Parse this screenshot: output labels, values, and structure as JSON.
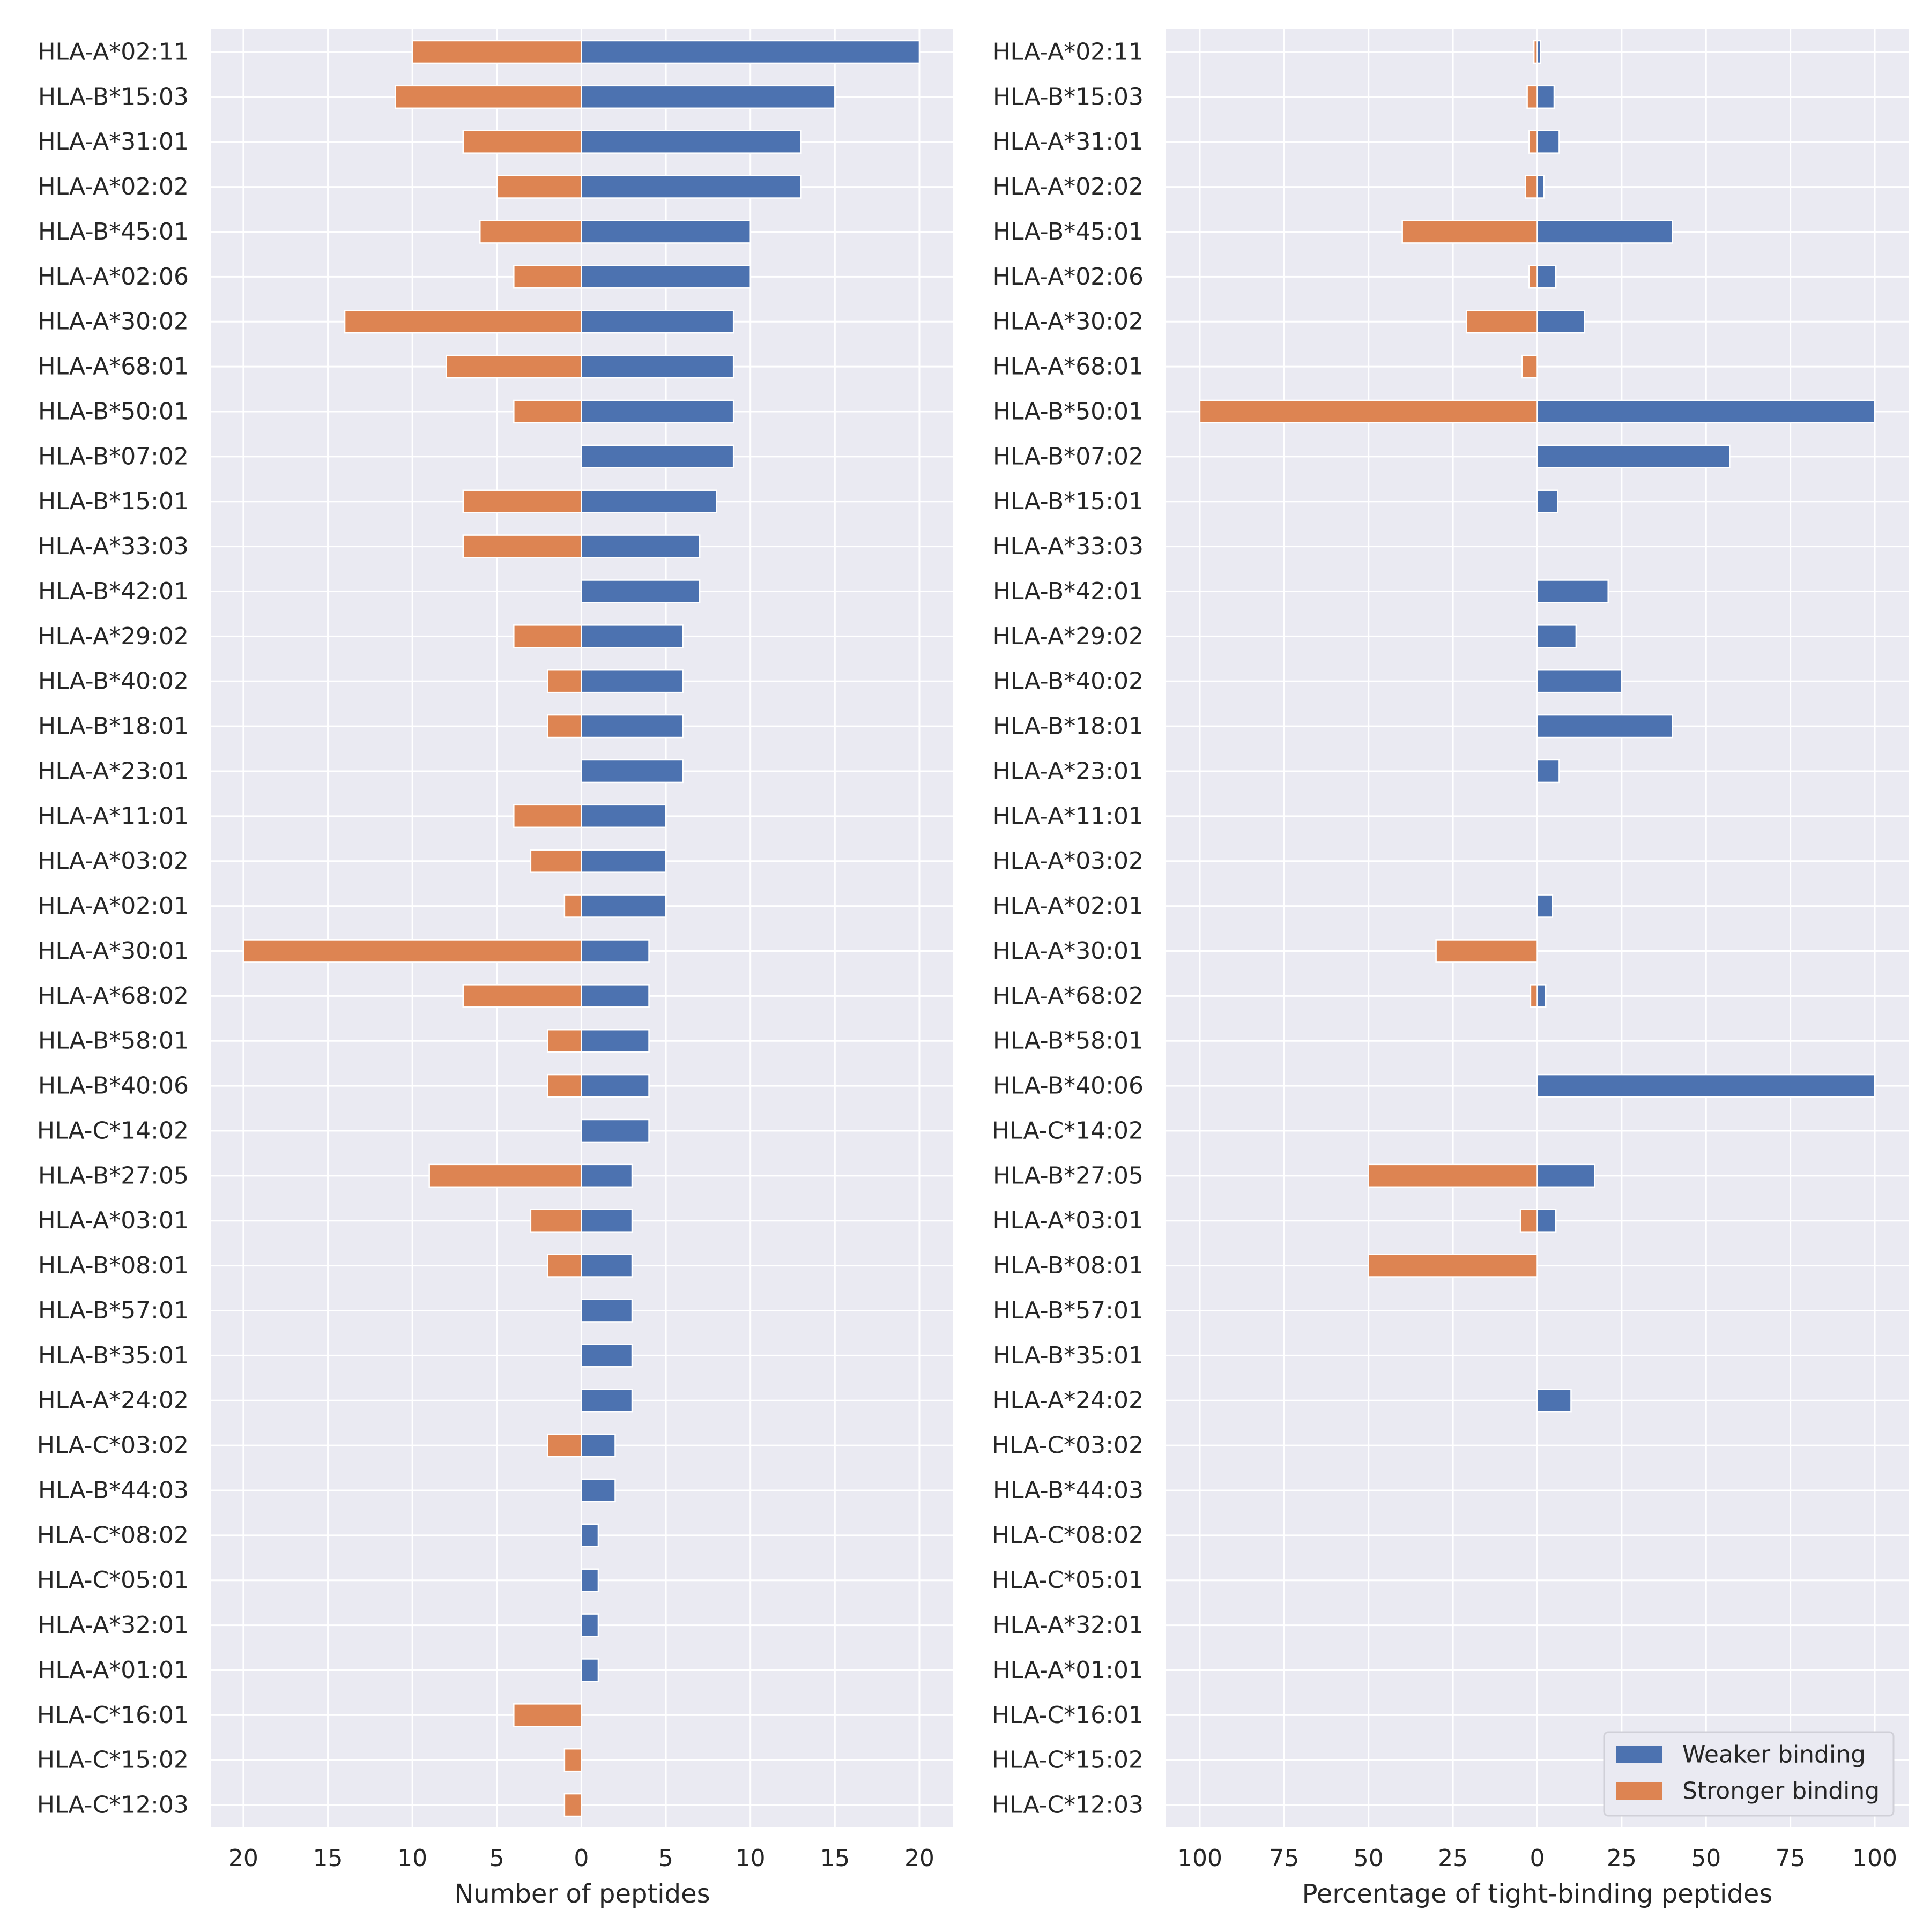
{
  "chart_data": [
    {
      "type": "bar",
      "orientation": "horizontal-diverging",
      "xlabel": "Number of peptides",
      "xlim": [
        -21.9,
        22
      ],
      "xticks": [
        -20,
        -15,
        -10,
        -5,
        0,
        5,
        10,
        15,
        20
      ],
      "xtick_labels": [
        "20",
        "15",
        "10",
        "5",
        "0",
        "5",
        "10",
        "15",
        "20"
      ],
      "grid": true,
      "categories": [
        "HLA-A*02:11",
        "HLA-B*15:03",
        "HLA-A*31:01",
        "HLA-A*02:02",
        "HLA-B*45:01",
        "HLA-A*02:06",
        "HLA-A*30:02",
        "HLA-A*68:01",
        "HLA-B*50:01",
        "HLA-B*07:02",
        "HLA-B*15:01",
        "HLA-A*33:03",
        "HLA-B*42:01",
        "HLA-A*29:02",
        "HLA-B*40:02",
        "HLA-B*18:01",
        "HLA-A*23:01",
        "HLA-A*11:01",
        "HLA-A*03:02",
        "HLA-A*02:01",
        "HLA-A*30:01",
        "HLA-A*68:02",
        "HLA-B*58:01",
        "HLA-B*40:06",
        "HLA-C*14:02",
        "HLA-B*27:05",
        "HLA-A*03:01",
        "HLA-B*08:01",
        "HLA-B*57:01",
        "HLA-B*35:01",
        "HLA-A*24:02",
        "HLA-C*03:02",
        "HLA-B*44:03",
        "HLA-C*08:02",
        "HLA-C*05:01",
        "HLA-A*32:01",
        "HLA-A*01:01",
        "HLA-C*16:01",
        "HLA-C*15:02",
        "HLA-C*12:03"
      ],
      "series": [
        {
          "name": "Weaker binding",
          "color": "#4c72b0",
          "values": [
            20,
            15,
            13,
            13,
            10,
            10,
            9,
            9,
            9,
            9,
            8,
            7,
            7,
            6,
            6,
            6,
            6,
            5,
            5,
            5,
            4,
            4,
            4,
            4,
            4,
            3,
            3,
            3,
            3,
            3,
            3,
            2,
            2,
            1,
            1,
            1,
            1,
            0,
            0,
            0
          ]
        },
        {
          "name": "Stronger binding",
          "color": "#dd8452",
          "values": [
            -10,
            -11,
            -7,
            -5,
            -6,
            -4,
            -14,
            -8,
            -4,
            0,
            -7,
            -7,
            0,
            -4,
            -2,
            -2,
            0,
            -4,
            -3,
            -1,
            -20,
            -7,
            -2,
            -2,
            0,
            -9,
            -3,
            -2,
            0,
            0,
            0,
            -2,
            0,
            0,
            0,
            0,
            0,
            -4,
            -1,
            -1
          ]
        }
      ]
    },
    {
      "type": "bar",
      "orientation": "horizontal-diverging",
      "xlabel": "Percentage of tight-binding peptides",
      "xlim": [
        -110,
        110
      ],
      "xticks": [
        -100,
        -75,
        -50,
        -25,
        0,
        25,
        50,
        75,
        100
      ],
      "xtick_labels": [
        "100",
        "75",
        "50",
        "25",
        "0",
        "25",
        "50",
        "75",
        "100"
      ],
      "grid": true,
      "legend_position": "bottom-right",
      "categories": [
        "HLA-A*02:11",
        "HLA-B*15:03",
        "HLA-A*31:01",
        "HLA-A*02:02",
        "HLA-B*45:01",
        "HLA-A*02:06",
        "HLA-A*30:02",
        "HLA-A*68:01",
        "HLA-B*50:01",
        "HLA-B*07:02",
        "HLA-B*15:01",
        "HLA-A*33:03",
        "HLA-B*42:01",
        "HLA-A*29:02",
        "HLA-B*40:02",
        "HLA-B*18:01",
        "HLA-A*23:01",
        "HLA-A*11:01",
        "HLA-A*03:02",
        "HLA-A*02:01",
        "HLA-A*30:01",
        "HLA-A*68:02",
        "HLA-B*58:01",
        "HLA-B*40:06",
        "HLA-C*14:02",
        "HLA-B*27:05",
        "HLA-A*03:01",
        "HLA-B*08:01",
        "HLA-B*57:01",
        "HLA-B*35:01",
        "HLA-A*24:02",
        "HLA-C*03:02",
        "HLA-B*44:03",
        "HLA-C*08:02",
        "HLA-C*05:01",
        "HLA-A*32:01",
        "HLA-A*01:01",
        "HLA-C*16:01",
        "HLA-C*15:02",
        "HLA-C*12:03"
      ],
      "series": [
        {
          "name": "Weaker binding",
          "color": "#4c72b0",
          "values": [
            1,
            5,
            6.5,
            2,
            40,
            5.5,
            14,
            0,
            100,
            57,
            6,
            0,
            21,
            11.5,
            25,
            40,
            6.5,
            0,
            0,
            4.5,
            0,
            2.5,
            0,
            100,
            0,
            17,
            5.5,
            0,
            0,
            0,
            10,
            0,
            0,
            0,
            0,
            0,
            0,
            0,
            0,
            0
          ]
        },
        {
          "name": "Stronger binding",
          "color": "#dd8452",
          "values": [
            -1,
            -3,
            -2.5,
            -3.5,
            -40,
            -2.5,
            -21,
            -4.5,
            -100,
            0,
            0,
            0,
            0,
            0,
            0,
            0,
            0,
            0,
            0,
            0,
            -30,
            -2,
            0,
            0,
            0,
            -50,
            -5,
            -50,
            0,
            0,
            0,
            0,
            0,
            0,
            0,
            0,
            0,
            0,
            0,
            0
          ]
        }
      ],
      "legend": [
        "Weaker binding",
        "Stronger binding"
      ]
    }
  ]
}
